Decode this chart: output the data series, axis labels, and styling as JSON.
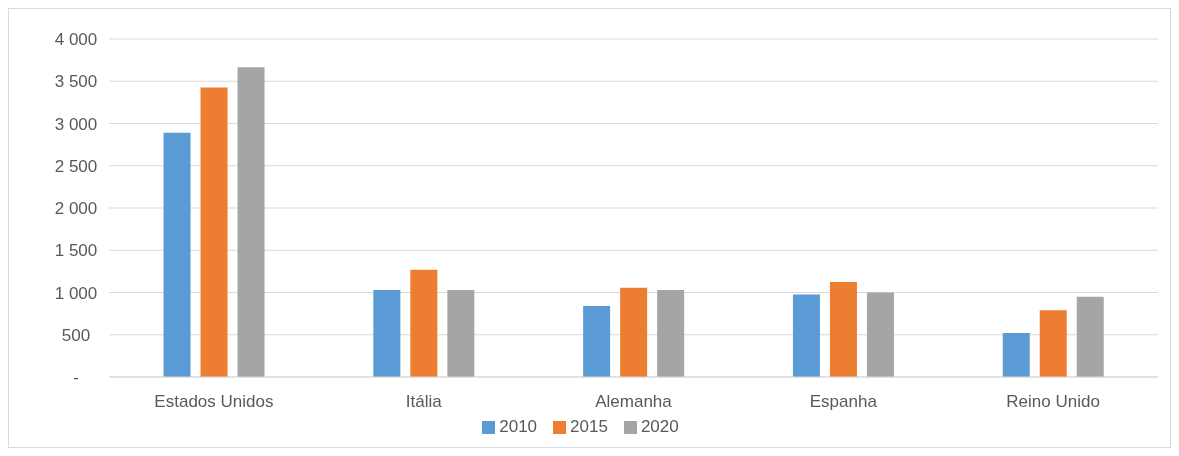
{
  "chart_data": {
    "type": "bar",
    "categories": [
      "Estados Unidos",
      "Itália",
      "Alemanha",
      "Espanha",
      "Reino Unido"
    ],
    "series": [
      {
        "name": "2010",
        "color": "#5b9bd5",
        "values": [
          2890,
          1030,
          840,
          975,
          520
        ]
      },
      {
        "name": "2015",
        "color": "#ed7d31",
        "values": [
          3425,
          1270,
          1055,
          1125,
          790
        ]
      },
      {
        "name": "2020",
        "color": "#a5a5a5",
        "values": [
          3665,
          1030,
          1030,
          1000,
          950
        ]
      }
    ],
    "ylim": [
      0,
      4000
    ],
    "yticks": [
      {
        "value": 0,
        "label": "-"
      },
      500,
      {
        "value": 1000,
        "label": "1 000"
      },
      {
        "value": 1500,
        "label": "1 500"
      },
      {
        "value": 2000,
        "label": "2 000"
      },
      {
        "value": 2500,
        "label": "2 500"
      },
      {
        "value": 3000,
        "label": "3 000"
      },
      {
        "value": 3500,
        "label": "3 500"
      },
      {
        "value": 4000,
        "label": "4 000"
      }
    ],
    "grid": "y",
    "legend": "bottom"
  }
}
